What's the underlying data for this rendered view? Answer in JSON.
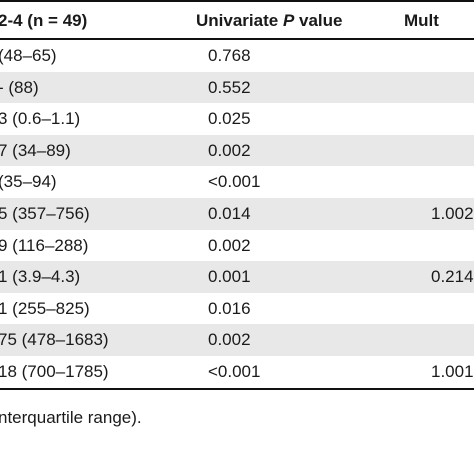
{
  "table": {
    "headers": [
      "2-4 (n = 49)",
      "Univariate P value",
      "Mult"
    ],
    "rows": [
      {
        "c1": "(48–65)",
        "c2": "0.768",
        "c3": "",
        "shaded": false
      },
      {
        "c1": "- (88)",
        "c2": "0.552",
        "c3": "",
        "shaded": true
      },
      {
        "c1": "3 (0.6–1.1)",
        "c2": "0.025",
        "c3": "",
        "shaded": false
      },
      {
        "c1": "7 (34–89)",
        "c2": "0.002",
        "c3": "",
        "shaded": true
      },
      {
        "c1": "(35–94)",
        "c2": "<0.001",
        "c3": "",
        "shaded": false
      },
      {
        "c1": "5 (357–756)",
        "c2": "0.014",
        "c3": "1.002",
        "shaded": true
      },
      {
        "c1": "9 (116–288)",
        "c2": "0.002",
        "c3": "",
        "shaded": false
      },
      {
        "c1": "1 (3.9–4.3)",
        "c2": "0.001",
        "c3": "0.214",
        "shaded": true
      },
      {
        "c1": "1 (255–825)",
        "c2": "0.016",
        "c3": "",
        "shaded": false
      },
      {
        "c1": "75 (478–1683)",
        "c2": "0.002",
        "c3": "",
        "shaded": true
      },
      {
        "c1": "18 (700–1785)",
        "c2": "<0.001",
        "c3": "1.001",
        "shaded": false
      }
    ]
  },
  "footnote": "nterquartile range)."
}
